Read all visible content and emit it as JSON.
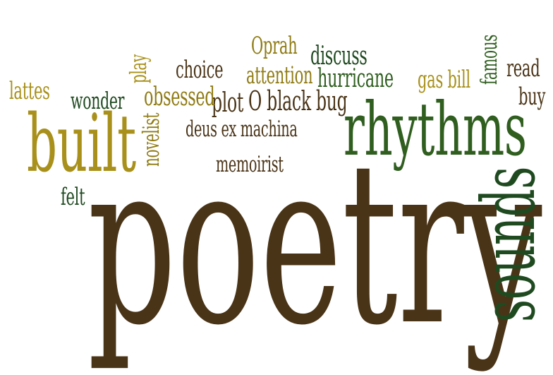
{
  "words": {
    "poetry": "poetry",
    "rhythms": "rhythms",
    "sounds": "sounds",
    "built": "built",
    "deus_ex_machina": "deus ex machina",
    "memoirist": "memoirist",
    "o_black_bug": "O black bug",
    "plot": "plot",
    "obsessed": "obsessed",
    "novelist": "novelist",
    "play": "play",
    "choice": "choice",
    "attention": "attention",
    "oprah": "Oprah",
    "discuss": "discuss",
    "hurricane": "hurricane",
    "gas_bill": "gas bill",
    "famous": "famous",
    "read": "read",
    "buy": "buy",
    "wonder": "wonder",
    "lattes": "lattes",
    "felt": "felt"
  },
  "colors": {
    "brown": "#4a3417",
    "olive": "#a8901a",
    "green": "#2f5e1f",
    "dark_green": "#1f4a20",
    "gold": "#8f7b14"
  }
}
